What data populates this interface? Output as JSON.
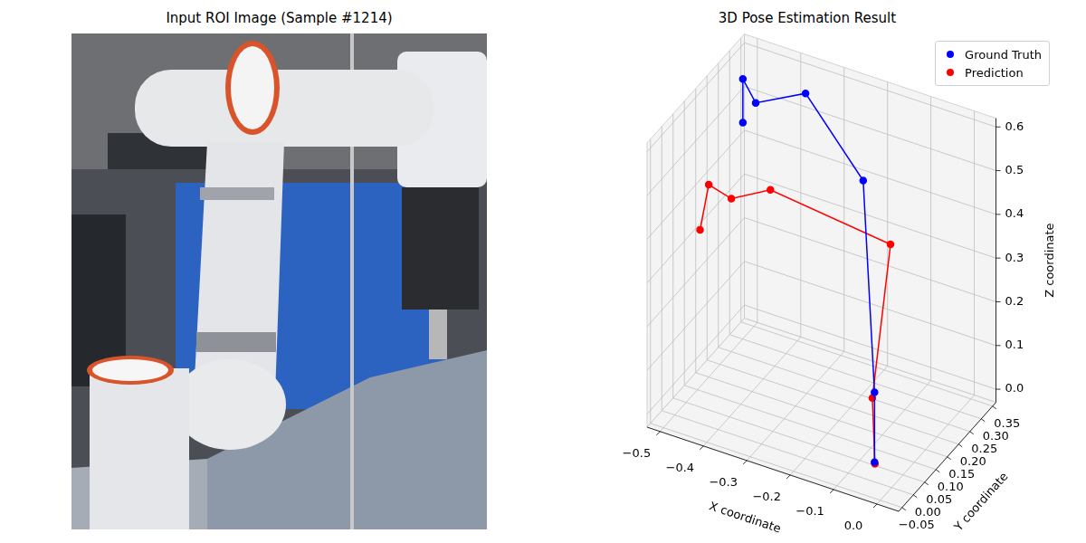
{
  "chart_data": [
    {
      "type": "image",
      "title": "Input ROI Image (Sample #1214)"
    },
    {
      "type": "line3d",
      "title": "3D Pose Estimation Result",
      "x_label": "X coordinate",
      "y_label": "Y coordinate",
      "z_label": "Z coordinate",
      "xlim": [
        -0.53,
        0.05
      ],
      "ylim": [
        -0.065,
        0.365
      ],
      "zlim": [
        -0.03,
        0.62
      ],
      "xticks": [
        {
          "value": -0.5,
          "label": "−0.5"
        },
        {
          "value": -0.4,
          "label": "−0.4"
        },
        {
          "value": -0.3,
          "label": "−0.3"
        },
        {
          "value": -0.2,
          "label": "−0.2"
        },
        {
          "value": -0.1,
          "label": "−0.1"
        },
        {
          "value": 0,
          "label": "0.0"
        }
      ],
      "yticks": [
        {
          "value": -0.05,
          "label": "−0.05"
        },
        {
          "value": 0,
          "label": "0.00"
        },
        0.05,
        {
          "value": 0.1,
          "label": "0.10"
        },
        0.15,
        {
          "value": 0.2,
          "label": "0.20"
        },
        0.25,
        {
          "value": 0.3,
          "label": "0.30"
        },
        0.35
      ],
      "zticks": [
        {
          "value": 0,
          "label": "0.0"
        },
        0.1,
        0.2,
        0.3,
        0.4,
        0.5,
        0.6
      ],
      "grid": true,
      "legend": "upper right",
      "series": [
        {
          "name": "Ground Truth",
          "color": "#0000ff",
          "marker": "circle",
          "x": [
            -0.05,
            -0.05,
            -0.17,
            -0.355,
            -0.47,
            -0.51,
            -0.51
          ],
          "y": [
            0.02,
            0.02,
            0.2,
            0.3,
            0.3,
            0.32,
            0.32
          ],
          "z": [
            0.0,
            0.16,
            0.5,
            0.58,
            0.52,
            0.55,
            0.45
          ]
        },
        {
          "name": "Prediction",
          "color": "#ff0000",
          "marker": "circle",
          "x": [
            -0.048,
            -0.055,
            -0.107,
            -0.41,
            -0.5,
            -0.5,
            -0.52
          ],
          "y": [
            0.018,
            0.02,
            0.2,
            0.25,
            0.25,
            0.15,
            0.15
          ],
          "z": [
            -0.002,
            0.145,
            0.375,
            0.37,
            0.32,
            0.41,
            0.3
          ]
        }
      ]
    }
  ]
}
